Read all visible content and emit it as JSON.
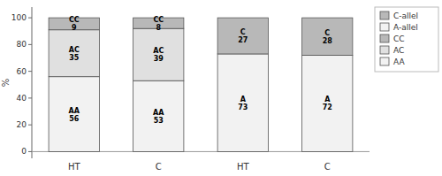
{
  "chart_data": {
    "type": "bar",
    "stacked": true,
    "categories": [
      "HT",
      "C",
      "HT",
      "C"
    ],
    "y_label": "%",
    "series": [
      {
        "name": "AA",
        "color": "#f2f2f2",
        "values": [
          56,
          53,
          null,
          null
        ],
        "value_labels": [
          "AA\n56",
          "AA\n53",
          null,
          null
        ]
      },
      {
        "name": "AC",
        "color": "#e0e0e0",
        "values": [
          35,
          39,
          null,
          null
        ],
        "value_labels": [
          "AC\n35",
          "AC\n39",
          null,
          null
        ]
      },
      {
        "name": "CC",
        "color": "#b8b8b8",
        "values": [
          9,
          8,
          null,
          null
        ],
        "value_labels": [
          "CC\n9",
          "CC\n8",
          null,
          null
        ]
      },
      {
        "name": "A-allel",
        "color": "#f2f2f2",
        "values": [
          null,
          null,
          73,
          72
        ],
        "value_labels": [
          null,
          null,
          "A\n73",
          "A\n72"
        ]
      },
      {
        "name": "C-allel",
        "color": "#b8b8b8",
        "values": [
          null,
          null,
          27,
          28
        ],
        "value_labels": [
          null,
          null,
          "C\n27",
          "C\n28"
        ]
      }
    ],
    "ylim": [
      -5,
      108
    ],
    "yticks": [
      0,
      20,
      40,
      60,
      80,
      100
    ],
    "grid": false,
    "legend": "upper right",
    "data_labels": true
  }
}
